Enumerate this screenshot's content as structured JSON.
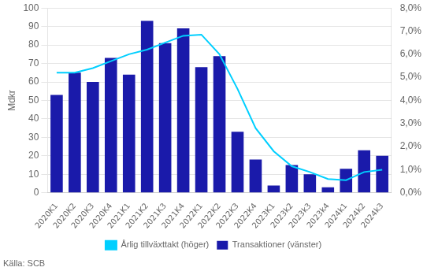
{
  "chart_data": {
    "type": "bar",
    "categories": [
      "2020K1",
      "2020K2",
      "2020K3",
      "2020K4",
      "2021K1",
      "2021K2",
      "2021K3",
      "2021K4",
      "2022K1",
      "2022K2",
      "2022K3",
      "2022K4",
      "2023K1",
      "2023k2",
      "2023k3",
      "2023k4",
      "2024k1",
      "2024k2",
      "2024k3"
    ],
    "series": [
      {
        "name": "Transaktioner (vänster)",
        "type": "bar",
        "color": "#1a1aaa",
        "values": [
          53,
          65,
          60,
          73,
          64,
          93,
          81,
          89,
          68,
          74,
          33,
          18,
          4,
          15,
          10,
          3,
          13,
          23,
          20
        ]
      },
      {
        "name": "Årlig tillväxttakt (höger)",
        "type": "line",
        "color": "#00cfff",
        "axis": "y2",
        "values": [
          5.2,
          5.2,
          5.4,
          5.7,
          6.0,
          6.2,
          6.5,
          6.8,
          6.85,
          6.0,
          4.5,
          2.8,
          1.8,
          1.15,
          0.9,
          0.6,
          0.55,
          0.9,
          1.0
        ]
      }
    ],
    "ylabel": "Mdkr",
    "ylim": [
      0,
      100
    ],
    "yticks": [
      0,
      10,
      20,
      30,
      40,
      50,
      60,
      70,
      80,
      90,
      100
    ],
    "y2lim": [
      0,
      8.0
    ],
    "y2ticks": [
      {
        "value": 0.0,
        "label": "0,0%"
      },
      {
        "value": 1.0,
        "label": "1,0%"
      },
      {
        "value": 2.0,
        "label": "2,0%"
      },
      {
        "value": 3.0,
        "label": "3,0%"
      },
      {
        "value": 4.0,
        "label": "4,0%"
      },
      {
        "value": 5.0,
        "label": "5,0%"
      },
      {
        "value": 6.0,
        "label": "6,0%"
      },
      {
        "value": 7.0,
        "label": "7,0%"
      },
      {
        "value": 8.0,
        "label": "8,0%"
      }
    ],
    "annotations": [
      "Källa: SCB"
    ],
    "grid": true,
    "legend": "bottom"
  }
}
